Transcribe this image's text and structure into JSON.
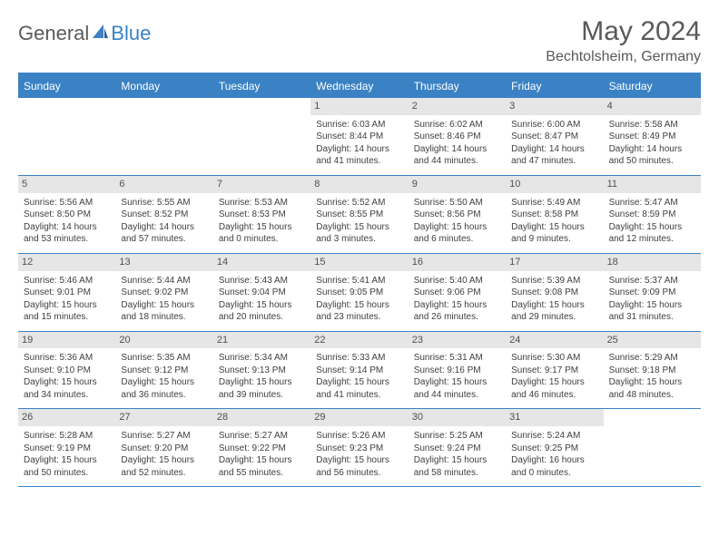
{
  "brand": {
    "part1": "General",
    "part2": "Blue",
    "color1": "#5a5a5a",
    "color2": "#3b82c4"
  },
  "title": "May 2024",
  "location": "Bechtolsheim, Germany",
  "header_bg": "#3b82c4",
  "header_fg": "#ffffff",
  "daynum_bg": "#e6e6e6",
  "border_color": "#3b82c4",
  "day_names": [
    "Sunday",
    "Monday",
    "Tuesday",
    "Wednesday",
    "Thursday",
    "Friday",
    "Saturday"
  ],
  "weeks": [
    [
      null,
      null,
      null,
      {
        "n": "1",
        "sr": "Sunrise: 6:03 AM",
        "ss": "Sunset: 8:44 PM",
        "dl1": "Daylight: 14 hours",
        "dl2": "and 41 minutes."
      },
      {
        "n": "2",
        "sr": "Sunrise: 6:02 AM",
        "ss": "Sunset: 8:46 PM",
        "dl1": "Daylight: 14 hours",
        "dl2": "and 44 minutes."
      },
      {
        "n": "3",
        "sr": "Sunrise: 6:00 AM",
        "ss": "Sunset: 8:47 PM",
        "dl1": "Daylight: 14 hours",
        "dl2": "and 47 minutes."
      },
      {
        "n": "4",
        "sr": "Sunrise: 5:58 AM",
        "ss": "Sunset: 8:49 PM",
        "dl1": "Daylight: 14 hours",
        "dl2": "and 50 minutes."
      }
    ],
    [
      {
        "n": "5",
        "sr": "Sunrise: 5:56 AM",
        "ss": "Sunset: 8:50 PM",
        "dl1": "Daylight: 14 hours",
        "dl2": "and 53 minutes."
      },
      {
        "n": "6",
        "sr": "Sunrise: 5:55 AM",
        "ss": "Sunset: 8:52 PM",
        "dl1": "Daylight: 14 hours",
        "dl2": "and 57 minutes."
      },
      {
        "n": "7",
        "sr": "Sunrise: 5:53 AM",
        "ss": "Sunset: 8:53 PM",
        "dl1": "Daylight: 15 hours",
        "dl2": "and 0 minutes."
      },
      {
        "n": "8",
        "sr": "Sunrise: 5:52 AM",
        "ss": "Sunset: 8:55 PM",
        "dl1": "Daylight: 15 hours",
        "dl2": "and 3 minutes."
      },
      {
        "n": "9",
        "sr": "Sunrise: 5:50 AM",
        "ss": "Sunset: 8:56 PM",
        "dl1": "Daylight: 15 hours",
        "dl2": "and 6 minutes."
      },
      {
        "n": "10",
        "sr": "Sunrise: 5:49 AM",
        "ss": "Sunset: 8:58 PM",
        "dl1": "Daylight: 15 hours",
        "dl2": "and 9 minutes."
      },
      {
        "n": "11",
        "sr": "Sunrise: 5:47 AM",
        "ss": "Sunset: 8:59 PM",
        "dl1": "Daylight: 15 hours",
        "dl2": "and 12 minutes."
      }
    ],
    [
      {
        "n": "12",
        "sr": "Sunrise: 5:46 AM",
        "ss": "Sunset: 9:01 PM",
        "dl1": "Daylight: 15 hours",
        "dl2": "and 15 minutes."
      },
      {
        "n": "13",
        "sr": "Sunrise: 5:44 AM",
        "ss": "Sunset: 9:02 PM",
        "dl1": "Daylight: 15 hours",
        "dl2": "and 18 minutes."
      },
      {
        "n": "14",
        "sr": "Sunrise: 5:43 AM",
        "ss": "Sunset: 9:04 PM",
        "dl1": "Daylight: 15 hours",
        "dl2": "and 20 minutes."
      },
      {
        "n": "15",
        "sr": "Sunrise: 5:41 AM",
        "ss": "Sunset: 9:05 PM",
        "dl1": "Daylight: 15 hours",
        "dl2": "and 23 minutes."
      },
      {
        "n": "16",
        "sr": "Sunrise: 5:40 AM",
        "ss": "Sunset: 9:06 PM",
        "dl1": "Daylight: 15 hours",
        "dl2": "and 26 minutes."
      },
      {
        "n": "17",
        "sr": "Sunrise: 5:39 AM",
        "ss": "Sunset: 9:08 PM",
        "dl1": "Daylight: 15 hours",
        "dl2": "and 29 minutes."
      },
      {
        "n": "18",
        "sr": "Sunrise: 5:37 AM",
        "ss": "Sunset: 9:09 PM",
        "dl1": "Daylight: 15 hours",
        "dl2": "and 31 minutes."
      }
    ],
    [
      {
        "n": "19",
        "sr": "Sunrise: 5:36 AM",
        "ss": "Sunset: 9:10 PM",
        "dl1": "Daylight: 15 hours",
        "dl2": "and 34 minutes."
      },
      {
        "n": "20",
        "sr": "Sunrise: 5:35 AM",
        "ss": "Sunset: 9:12 PM",
        "dl1": "Daylight: 15 hours",
        "dl2": "and 36 minutes."
      },
      {
        "n": "21",
        "sr": "Sunrise: 5:34 AM",
        "ss": "Sunset: 9:13 PM",
        "dl1": "Daylight: 15 hours",
        "dl2": "and 39 minutes."
      },
      {
        "n": "22",
        "sr": "Sunrise: 5:33 AM",
        "ss": "Sunset: 9:14 PM",
        "dl1": "Daylight: 15 hours",
        "dl2": "and 41 minutes."
      },
      {
        "n": "23",
        "sr": "Sunrise: 5:31 AM",
        "ss": "Sunset: 9:16 PM",
        "dl1": "Daylight: 15 hours",
        "dl2": "and 44 minutes."
      },
      {
        "n": "24",
        "sr": "Sunrise: 5:30 AM",
        "ss": "Sunset: 9:17 PM",
        "dl1": "Daylight: 15 hours",
        "dl2": "and 46 minutes."
      },
      {
        "n": "25",
        "sr": "Sunrise: 5:29 AM",
        "ss": "Sunset: 9:18 PM",
        "dl1": "Daylight: 15 hours",
        "dl2": "and 48 minutes."
      }
    ],
    [
      {
        "n": "26",
        "sr": "Sunrise: 5:28 AM",
        "ss": "Sunset: 9:19 PM",
        "dl1": "Daylight: 15 hours",
        "dl2": "and 50 minutes."
      },
      {
        "n": "27",
        "sr": "Sunrise: 5:27 AM",
        "ss": "Sunset: 9:20 PM",
        "dl1": "Daylight: 15 hours",
        "dl2": "and 52 minutes."
      },
      {
        "n": "28",
        "sr": "Sunrise: 5:27 AM",
        "ss": "Sunset: 9:22 PM",
        "dl1": "Daylight: 15 hours",
        "dl2": "and 55 minutes."
      },
      {
        "n": "29",
        "sr": "Sunrise: 5:26 AM",
        "ss": "Sunset: 9:23 PM",
        "dl1": "Daylight: 15 hours",
        "dl2": "and 56 minutes."
      },
      {
        "n": "30",
        "sr": "Sunrise: 5:25 AM",
        "ss": "Sunset: 9:24 PM",
        "dl1": "Daylight: 15 hours",
        "dl2": "and 58 minutes."
      },
      {
        "n": "31",
        "sr": "Sunrise: 5:24 AM",
        "ss": "Sunset: 9:25 PM",
        "dl1": "Daylight: 16 hours",
        "dl2": "and 0 minutes."
      },
      null
    ]
  ]
}
